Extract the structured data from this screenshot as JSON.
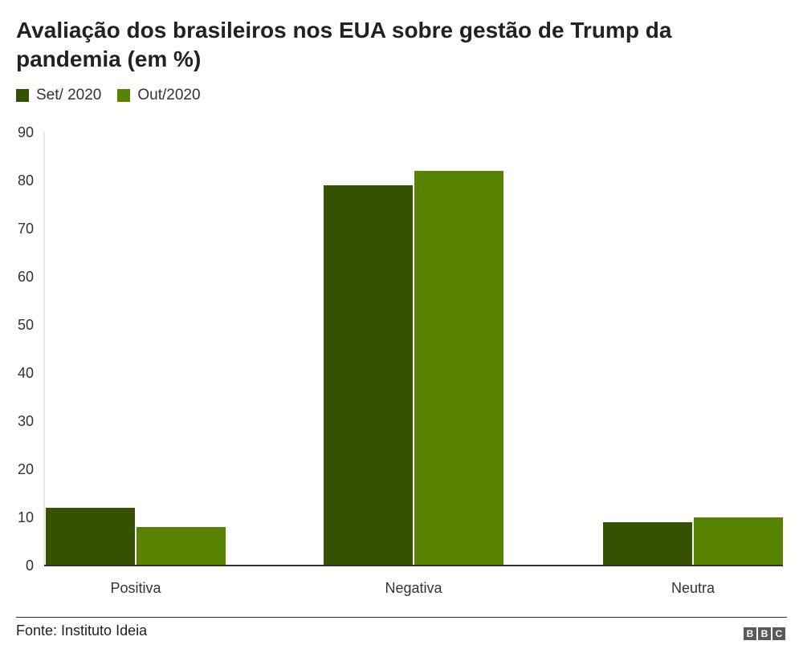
{
  "title": "Avaliação dos brasileiros nos EUA sobre gestão de Trump da pandemia (em %)",
  "source": "Fonte: Instituto Ideia",
  "brand": [
    "B",
    "B",
    "C"
  ],
  "chart_data": {
    "type": "bar",
    "title": "Avaliação dos brasileiros nos EUA sobre gestão de Trump da pandemia (em %)",
    "xlabel": "",
    "ylabel": "",
    "categories": [
      "Positiva",
      "Negativa",
      "Neutra"
    ],
    "series": [
      {
        "name": "Set/ 2020",
        "color": "#345200",
        "values": [
          12,
          79,
          9
        ]
      },
      {
        "name": "Out/2020",
        "color": "#588300",
        "values": [
          8,
          82,
          10
        ]
      }
    ],
    "ylim": [
      0,
      90
    ],
    "yticks": [
      "0",
      "10",
      "20",
      "30",
      "40",
      "50",
      "60",
      "70",
      "80",
      "90"
    ],
    "grid": false,
    "legend": "top-left"
  }
}
